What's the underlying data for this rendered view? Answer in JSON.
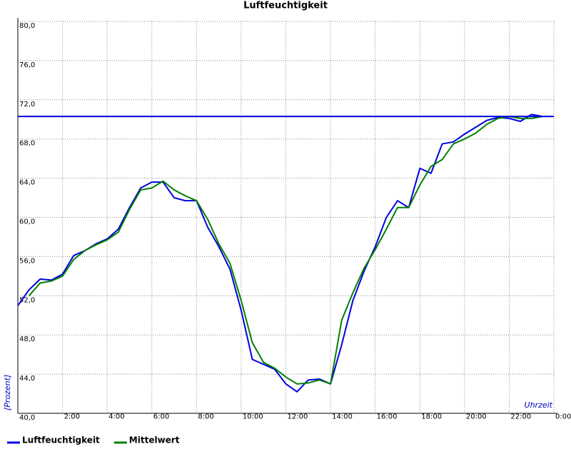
{
  "chart_data": {
    "type": "line",
    "title": "Luftfeuchtigkeit",
    "ylabel": "[Prozent]",
    "xlabel": "Uhrzeit",
    "xlim": [
      0,
      24
    ],
    "ylim": [
      40,
      80
    ],
    "xticks": [
      {
        "value": 2,
        "label": "2:00"
      },
      {
        "value": 4,
        "label": "4:00"
      },
      {
        "value": 6,
        "label": "6:00"
      },
      {
        "value": 8,
        "label": "8:00"
      },
      {
        "value": 10,
        "label": "10:00"
      },
      {
        "value": 12,
        "label": "12:00"
      },
      {
        "value": 14,
        "label": "14:00"
      },
      {
        "value": 16,
        "label": "16:00"
      },
      {
        "value": 18,
        "label": "18:00"
      },
      {
        "value": 20,
        "label": "20:00"
      },
      {
        "value": 22,
        "label": "22:00"
      },
      {
        "value": 24,
        "label": "0:00"
      }
    ],
    "yticks": [
      {
        "value": 40,
        "label": "40,0"
      },
      {
        "value": 44,
        "label": "44,0"
      },
      {
        "value": 48,
        "label": "48,0"
      },
      {
        "value": 52,
        "label": "52,0"
      },
      {
        "value": 56,
        "label": "56,0"
      },
      {
        "value": 60,
        "label": "60,0"
      },
      {
        "value": 64,
        "label": "64,0"
      },
      {
        "value": 68,
        "label": "68,0"
      },
      {
        "value": 72,
        "label": "72,0"
      },
      {
        "value": 76,
        "label": "76,0"
      },
      {
        "value": 80,
        "label": "80,0"
      }
    ],
    "grid": true,
    "reference_line": {
      "value": 70.3,
      "color": "#0000e0"
    },
    "x": [
      0,
      0.5,
      1,
      1.5,
      2,
      2.5,
      3,
      3.5,
      4,
      4.5,
      5,
      5.5,
      6,
      6.5,
      7,
      7.5,
      8,
      8.5,
      9,
      9.5,
      10,
      10.5,
      11,
      11.5,
      12,
      12.5,
      13,
      13.5,
      14,
      14.5,
      15,
      15.5,
      16,
      16.5,
      17,
      17.5,
      18,
      18.5,
      19,
      19.5,
      20,
      20.5,
      21,
      21.5,
      22,
      22.5,
      23,
      23.5
    ],
    "series": [
      {
        "name": "Luftfeuchtigkeit",
        "color": "#0000e0",
        "values": [
          51.0,
          52.6,
          53.7,
          53.6,
          54.2,
          56.1,
          56.6,
          57.3,
          57.8,
          58.8,
          61.0,
          63.0,
          63.6,
          63.6,
          62.0,
          61.7,
          61.7,
          59.0,
          57.0,
          54.7,
          50.5,
          45.5,
          45.0,
          44.5,
          43.0,
          42.2,
          43.4,
          43.5,
          43.0,
          47.0,
          51.5,
          54.5,
          57.0,
          60.0,
          61.7,
          61.0,
          65.0,
          64.5,
          67.5,
          67.7,
          68.5,
          69.2,
          69.9,
          70.2,
          70.1,
          69.8,
          70.5,
          70.3
        ]
      },
      {
        "name": "Mittelwert",
        "color": "#008000",
        "values": [
          null,
          52.0,
          53.3,
          53.5,
          54.0,
          55.7,
          56.6,
          57.2,
          57.7,
          58.5,
          60.8,
          62.8,
          63.0,
          63.7,
          62.8,
          62.2,
          61.7,
          59.8,
          57.3,
          55.3,
          51.5,
          47.2,
          45.2,
          44.6,
          43.7,
          43.0,
          43.1,
          43.4,
          43.0,
          49.5,
          52.3,
          54.8,
          56.7,
          58.8,
          61.0,
          61.0,
          63.3,
          65.2,
          65.9,
          67.5,
          68.0,
          68.6,
          69.5,
          70.1,
          70.3,
          70.1,
          70.1,
          70.3
        ]
      }
    ]
  }
}
